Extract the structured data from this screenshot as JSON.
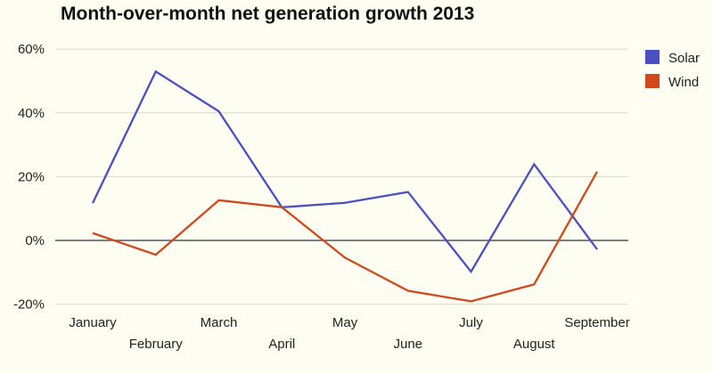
{
  "chart_data": {
    "type": "line",
    "title": "Month-over-month net generation growth 2013",
    "xlabel": "",
    "ylabel": "",
    "categories": [
      "January",
      "February",
      "March",
      "April",
      "May",
      "June",
      "July",
      "August",
      "September"
    ],
    "series": [
      {
        "name": "Solar",
        "color": "#4a4fc4",
        "values": [
          11.7,
          53.0,
          40.5,
          10.4,
          11.8,
          15.2,
          -9.8,
          23.9,
          -2.8
        ]
      },
      {
        "name": "Wind",
        "color": "#d2471c",
        "values": [
          2.3,
          -4.5,
          12.6,
          10.4,
          -5.4,
          -15.8,
          -19.1,
          -13.8,
          21.6
        ]
      }
    ],
    "ylim": [
      -20,
      60
    ],
    "yticks": [
      -20,
      0,
      20,
      40,
      60
    ],
    "ytick_labels": [
      "-20%",
      "0%",
      "20%",
      "40%",
      "60%"
    ],
    "grid": true,
    "legend_position": "right"
  }
}
